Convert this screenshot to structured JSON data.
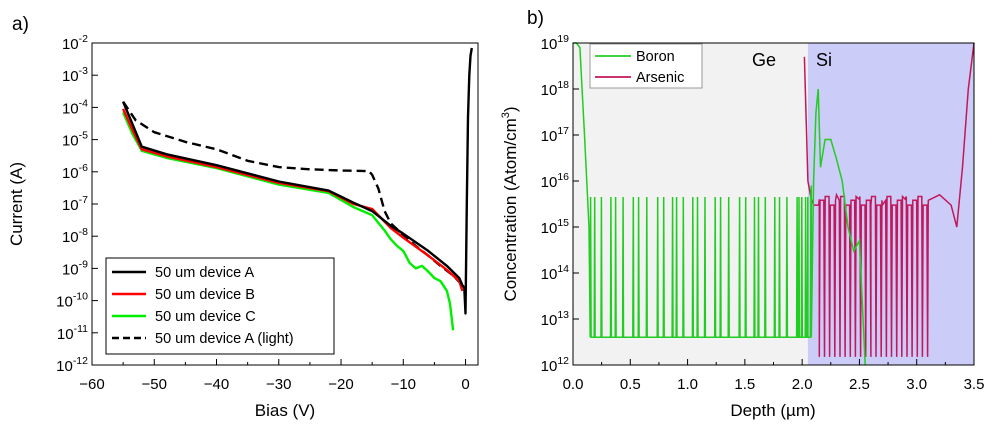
{
  "colors": {
    "device_a": "#000000",
    "device_b": "#ff0000",
    "device_c": "#00ee00",
    "boron": "#22cc22",
    "arsenic": "#c2185b",
    "ge_region": "#f2f2f2",
    "si_region": "#ccccf8"
  },
  "chart_data": [
    {
      "panel_label": "a)",
      "type": "line",
      "xlabel": "Bias (V)",
      "ylabel": "Current (A)",
      "xlim": [
        -60,
        2
      ],
      "ylim": [
        1e-12,
        0.01
      ],
      "y_scale": "log",
      "xticks": [
        "−60",
        "−50",
        "−40",
        "−30",
        "−20",
        "−10",
        "0"
      ],
      "yticks": [
        {
          "b": "10",
          "e": "-12"
        },
        {
          "b": "10",
          "e": "-11"
        },
        {
          "b": "10",
          "e": "-10"
        },
        {
          "b": "10",
          "e": "-9"
        },
        {
          "b": "10",
          "e": "-8"
        },
        {
          "b": "10",
          "e": "-7"
        },
        {
          "b": "10",
          "e": "-6"
        },
        {
          "b": "10",
          "e": "-5"
        },
        {
          "b": "10",
          "e": "-4"
        },
        {
          "b": "10",
          "e": "-3"
        },
        {
          "b": "10",
          "e": "-2"
        }
      ],
      "grid": false,
      "legend_position": "bottom-left",
      "series": [
        {
          "name": "50 um device A",
          "style": "solid",
          "x": [
            -55,
            -53.5,
            -52,
            -48,
            -40,
            -30,
            -22,
            -18,
            -15,
            -12,
            -10,
            -6,
            -3,
            -1,
            -0.5,
            -0.2,
            0,
            0.2,
            0.4,
            0.6,
            0.8,
            1.0
          ],
          "y": [
            0.00015,
            3e-05,
            6e-06,
            3.5e-06,
            1.6e-06,
            5e-07,
            2.6e-07,
            1.1e-07,
            6e-08,
            2.1e-08,
            1.2e-08,
            3.5e-09,
            1.2e-09,
            5e-10,
            3e-10,
            2.5e-10,
            4e-11,
            1e-07,
            5e-05,
            0.001,
            0.004,
            0.007
          ]
        },
        {
          "name": "50 um device B",
          "style": "solid",
          "x": [
            -55,
            -53.5,
            -52,
            -48,
            -40,
            -30,
            -22,
            -18,
            -15,
            -12,
            -10,
            -6,
            -3,
            -1,
            -0.5
          ],
          "y": [
            9e-05,
            2e-05,
            5e-06,
            3e-06,
            1.4e-06,
            4.5e-07,
            2.5e-07,
            1e-07,
            7e-08,
            1.8e-08,
            9e-09,
            2.5e-09,
            9e-10,
            4e-10,
            2e-10
          ]
        },
        {
          "name": "50 um device C",
          "style": "solid",
          "x": [
            -55,
            -53.5,
            -52,
            -48,
            -40,
            -30,
            -22,
            -18,
            -15,
            -13,
            -12,
            -11,
            -10,
            -9,
            -8,
            -7,
            -6,
            -5,
            -4,
            -3,
            -2.5,
            -2
          ],
          "y": [
            7e-05,
            1.5e-05,
            4.5e-06,
            2.7e-06,
            1.3e-06,
            4e-07,
            2.2e-07,
            8e-08,
            4.5e-08,
            1.5e-08,
            8e-09,
            5e-09,
            3.5e-09,
            1.5e-09,
            1e-09,
            1.2e-09,
            8e-10,
            5e-10,
            4e-10,
            2e-10,
            8e-11,
            1.2e-11
          ]
        },
        {
          "name": "50 um device A (light)",
          "style": "dashed",
          "x": [
            -55,
            -53,
            -50,
            -45,
            -40,
            -35,
            -30,
            -25,
            -20,
            -15.5,
            -15,
            -14,
            -13,
            -12,
            -10,
            -8,
            -6,
            -4,
            -2,
            -0.5
          ],
          "y": [
            0.00015,
            4e-05,
            1.7e-05,
            8.5e-06,
            5e-06,
            2.2e-06,
            1.4e-06,
            1.2e-06,
            1.1e-06,
            1.05e-06,
            8e-07,
            3e-07,
            6e-08,
            2.5e-08,
            1.1e-08,
            5e-09,
            2.5e-09,
            1.2e-09,
            6e-10,
            3e-10
          ]
        }
      ]
    },
    {
      "panel_label": "b)",
      "type": "line",
      "xlabel": "Depth (µm)",
      "ylabel_main": "Concentration (Atom/cm",
      "ylabel_sup": "3",
      "ylabel_end": ")",
      "xlim": [
        0,
        3.5
      ],
      "ylim": [
        1000000000000.0,
        1e+19
      ],
      "y_scale": "log",
      "xticks": [
        "0.0",
        "0.5",
        "1.0",
        "1.5",
        "2.0",
        "2.5",
        "3.0",
        "3.5"
      ],
      "yticks": [
        {
          "b": "10",
          "e": "12"
        },
        {
          "b": "10",
          "e": "13"
        },
        {
          "b": "10",
          "e": "14"
        },
        {
          "b": "10",
          "e": "15"
        },
        {
          "b": "10",
          "e": "16"
        },
        {
          "b": "10",
          "e": "17"
        },
        {
          "b": "10",
          "e": "18"
        },
        {
          "b": "10",
          "e": "19"
        }
      ],
      "grid": false,
      "legend_position": "top-left",
      "regions": [
        {
          "label": "Ge",
          "x_start": 0,
          "x_end": 2.05
        },
        {
          "label": "Si",
          "x_start": 2.05,
          "x_end": 3.5
        }
      ],
      "series": [
        {
          "name": "Boron",
          "x": [
            0.0,
            0.03,
            0.06,
            0.1,
            0.14,
            0.16,
            0.2,
            2.05,
            2.08,
            2.1,
            2.12,
            2.14,
            2.16,
            2.2,
            2.25,
            2.3,
            2.35,
            2.4,
            2.45,
            2.5,
            2.55
          ],
          "y": [
            1e+19,
            1e+19,
            8e+18,
            1e+17,
            1000000000000000.0,
            4000000000000.0,
            4000000000000.0,
            4000000000000.0,
            8000000000000000.0,
            1e+16,
            3e+17,
            1e+18,
            2e+16,
            8e+16,
            8e+16,
            3e+16,
            1e+16,
            1000000000000000.0,
            300000000000000.0,
            500000000000000.0,
            1000000000000.0
          ],
          "spike_level": 4500000000000000.0,
          "spike_low": 4000000000000.0,
          "spike_range": [
            0.15,
            2.08
          ]
        },
        {
          "name": "Arsenic",
          "x": [
            2.02,
            2.05,
            2.08,
            2.1,
            2.15,
            2.2,
            2.3,
            2.4,
            2.5,
            2.6,
            2.7,
            2.8,
            2.9,
            3.0,
            3.1,
            3.2,
            3.3,
            3.35,
            3.4,
            3.45,
            3.5
          ],
          "y": [
            5e+18,
            1e+16,
            4000000000000000.0,
            3000000000000000.0,
            4000000000000000.0,
            2000000000000000.0,
            5000000000000000.0,
            3000000000000000.0,
            4000000000000000.0,
            3000000000000000.0,
            3000000000000000.0,
            3000000000000000.0,
            4000000000000000.0,
            3000000000000000.0,
            3000000000000000.0,
            5000000000000000.0,
            3000000000000000.0,
            1000000000000000.0,
            2e+16,
            1e+18,
            1e+19
          ],
          "drop_level": 1500000000000.0,
          "drop_range": [
            2.15,
            3.1
          ]
        }
      ]
    }
  ]
}
